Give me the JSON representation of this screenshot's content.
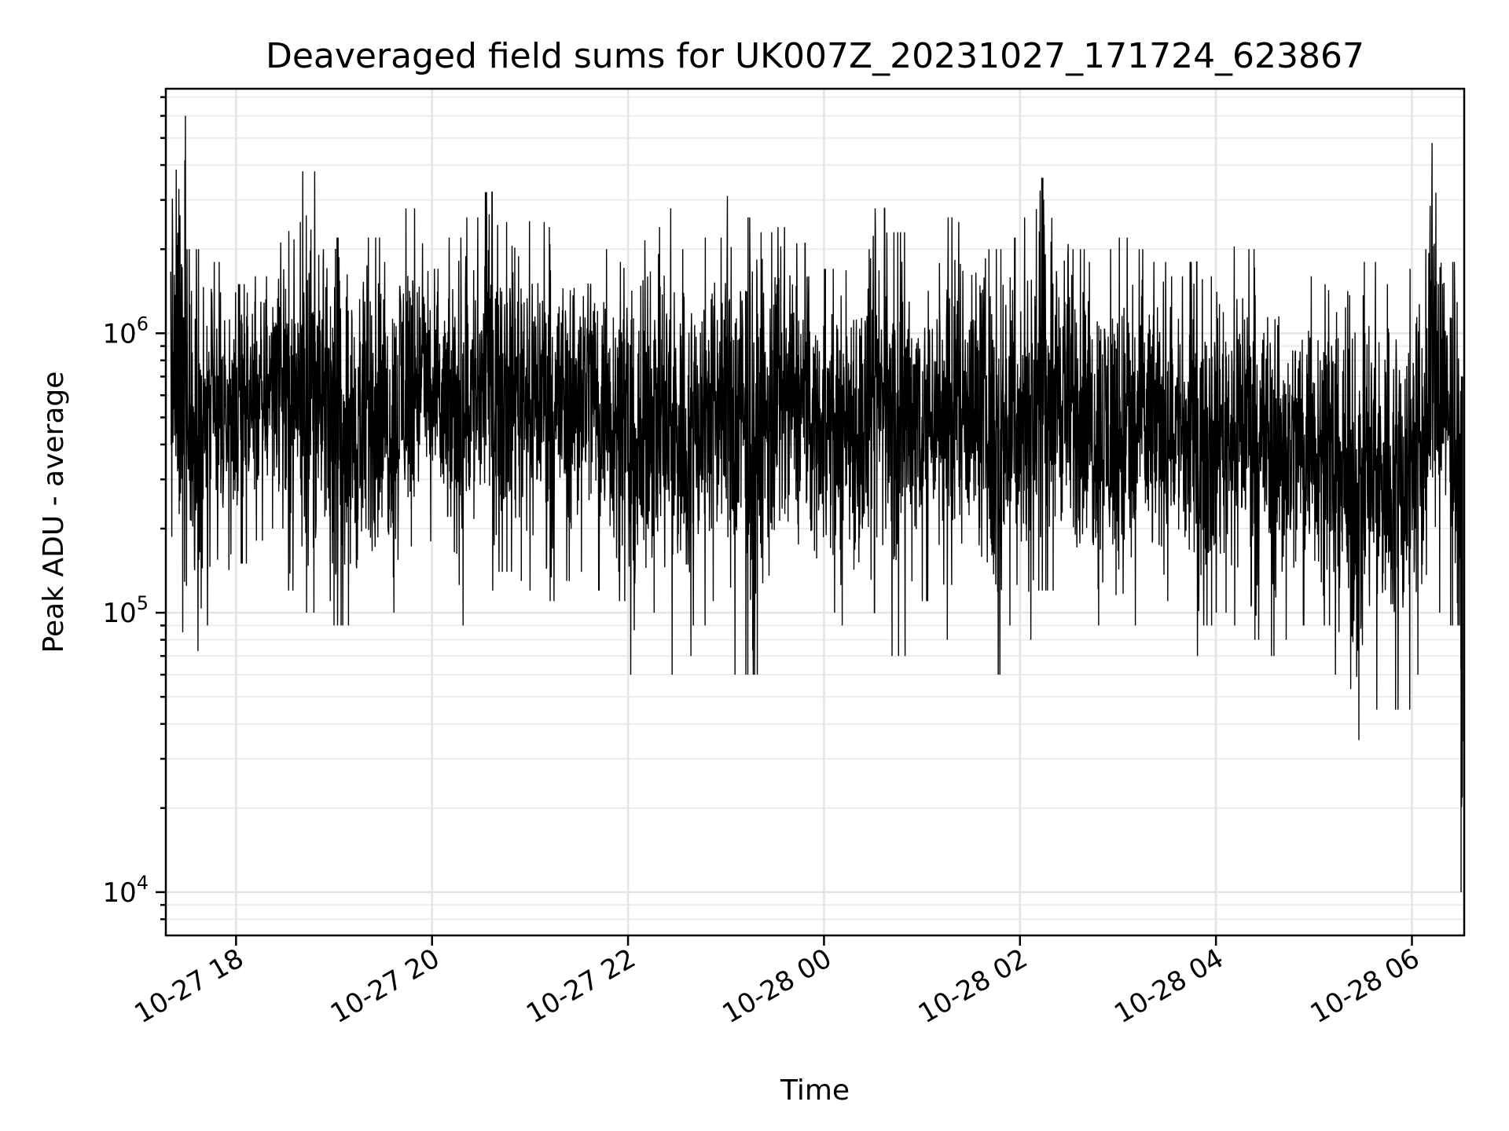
{
  "chart_data": {
    "type": "line",
    "title": "Deaveraged field sums for UK007Z_20231027_171724_623867",
    "xlabel": "Time",
    "ylabel": "Peak ADU - average",
    "yscale": "log",
    "xlim": [
      "2023-10-27 17:17",
      "2023-10-28 06:32"
    ],
    "ylim": [
      7000,
      7500000
    ],
    "grid": true,
    "xticks": [
      {
        "value": "2023-10-27 18:00",
        "label": "10-27 18"
      },
      {
        "value": "2023-10-27 20:00",
        "label": "10-27 20"
      },
      {
        "value": "2023-10-27 22:00",
        "label": "10-27 22"
      },
      {
        "value": "2023-10-28 00:00",
        "label": "10-28 00"
      },
      {
        "value": "2023-10-28 02:00",
        "label": "10-28 02"
      },
      {
        "value": "2023-10-28 04:00",
        "label": "10-28 04"
      },
      {
        "value": "2023-10-28 06:00",
        "label": "10-28 06"
      }
    ],
    "yticks": [
      {
        "value": 10000,
        "base": "10",
        "exp": "4"
      },
      {
        "value": 100000,
        "base": "10",
        "exp": "5"
      },
      {
        "value": 1000000,
        "base": "10",
        "exp": "6"
      }
    ],
    "series": [
      {
        "color": "#000000",
        "x": [
          "2023-10-27 17:20",
          "2023-10-27 17:30",
          "2023-10-27 17:40",
          "2023-10-27 17:50",
          "2023-10-27 18:00",
          "2023-10-27 18:10",
          "2023-10-27 18:20",
          "2023-10-27 18:30",
          "2023-10-27 18:40",
          "2023-10-27 18:50",
          "2023-10-27 19:00",
          "2023-10-27 19:10",
          "2023-10-27 19:20",
          "2023-10-27 19:30",
          "2023-10-27 19:40",
          "2023-10-27 19:50",
          "2023-10-27 20:00",
          "2023-10-27 20:10",
          "2023-10-27 20:20",
          "2023-10-27 20:30",
          "2023-10-27 20:40",
          "2023-10-27 20:50",
          "2023-10-27 21:00",
          "2023-10-27 21:10",
          "2023-10-27 21:20",
          "2023-10-27 21:30",
          "2023-10-27 21:40",
          "2023-10-27 21:50",
          "2023-10-27 22:00",
          "2023-10-27 22:10",
          "2023-10-27 22:20",
          "2023-10-27 22:30",
          "2023-10-27 22:40",
          "2023-10-27 22:50",
          "2023-10-27 23:00",
          "2023-10-27 23:10",
          "2023-10-27 23:20",
          "2023-10-27 23:30",
          "2023-10-27 23:40",
          "2023-10-27 23:50",
          "2023-10-28 00:00",
          "2023-10-28 00:10",
          "2023-10-28 00:20",
          "2023-10-28 00:30",
          "2023-10-28 00:40",
          "2023-10-28 00:50",
          "2023-10-28 01:00",
          "2023-10-28 01:10",
          "2023-10-28 01:20",
          "2023-10-28 01:30",
          "2023-10-28 01:40",
          "2023-10-28 01:50",
          "2023-10-28 02:00",
          "2023-10-28 02:10",
          "2023-10-28 02:20",
          "2023-10-28 02:30",
          "2023-10-28 02:40",
          "2023-10-28 02:50",
          "2023-10-28 03:00",
          "2023-10-28 03:10",
          "2023-10-28 03:20",
          "2023-10-28 03:30",
          "2023-10-28 03:40",
          "2023-10-28 03:50",
          "2023-10-28 04:00",
          "2023-10-28 04:10",
          "2023-10-28 04:20",
          "2023-10-28 04:30",
          "2023-10-28 04:40",
          "2023-10-28 04:50",
          "2023-10-28 05:00",
          "2023-10-28 05:10",
          "2023-10-28 05:20",
          "2023-10-28 05:30",
          "2023-10-28 05:40",
          "2023-10-28 05:50",
          "2023-10-28 06:00",
          "2023-10-28 06:10",
          "2023-10-28 06:20",
          "2023-10-28 06:30"
        ],
        "y_low": [
          70000,
          60000,
          90000,
          120000,
          150000,
          180000,
          200000,
          120000,
          100000,
          110000,
          90000,
          80000,
          95000,
          100000,
          120000,
          180000,
          130000,
          90000,
          110000,
          120000,
          140000,
          130000,
          120000,
          110000,
          130000,
          140000,
          120000,
          110000,
          60000,
          100000,
          60000,
          70000,
          90000,
          110000,
          60000,
          60000,
          70000,
          100000,
          120000,
          110000,
          100000,
          90000,
          80000,
          100000,
          70000,
          100000,
          110000,
          80000,
          120000,
          100000,
          60000,
          90000,
          80000,
          120000,
          120000,
          100000,
          90000,
          80000,
          60000,
          90000,
          100000,
          110000,
          70000,
          90000,
          100000,
          90000,
          80000,
          70000,
          80000,
          90000,
          90000,
          60000,
          35000,
          45000,
          50000,
          45000,
          60000,
          100000,
          90000,
          10000
        ],
        "y_high": [
          6000000,
          2000000,
          1800000,
          1400000,
          1500000,
          1600000,
          2200000,
          2500000,
          3800000,
          2000000,
          2200000,
          2000000,
          2200000,
          1800000,
          2800000,
          2100000,
          1700000,
          2200000,
          2600000,
          3200000,
          2500000,
          2800000,
          2500000,
          2400000,
          2200000,
          2600000,
          2000000,
          1800000,
          1700000,
          2400000,
          2800000,
          2000000,
          2200000,
          2200000,
          3100000,
          2600000,
          2300000,
          2400000,
          2100000,
          1600000,
          1700000,
          2200000,
          2000000,
          2800000,
          2300000,
          2400000,
          2000000,
          2600000,
          2500000,
          2300000,
          2000000,
          2200000,
          2600000,
          3600000,
          2700000,
          2000000,
          1800000,
          2000000,
          2200000,
          2000000,
          1800000,
          1600000,
          1800000,
          1600000,
          1700000,
          2300000,
          2000000,
          1900000,
          1500000,
          1600000,
          1500000,
          1400000,
          1600000,
          1800000,
          1500000,
          1700000,
          2000000,
          4800000,
          1800000,
          700000
        ]
      }
    ]
  }
}
